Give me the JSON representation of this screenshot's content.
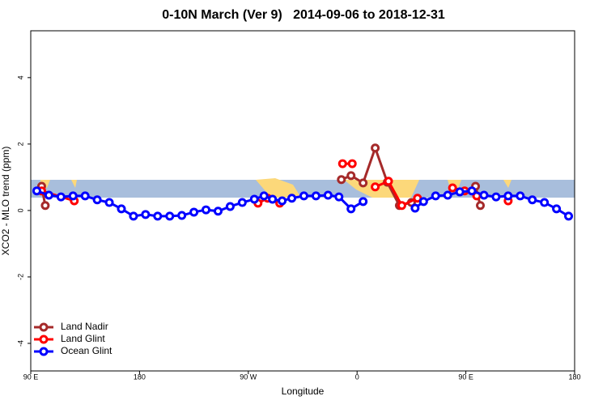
{
  "chart_data": {
    "type": "line",
    "title": "0-10N March (Ver 9)   2014-09-06 to 2018-12-31",
    "xlabel": "Longitude",
    "ylabel": "XCO2 - MLO trend (ppm)",
    "xlim": [
      90,
      540
    ],
    "ylim": [
      -4.83,
      5.41
    ],
    "xticks": [
      {
        "value": 90,
        "label": "90 E"
      },
      180,
      {
        "value": 270,
        "label": "90 W"
      },
      {
        "value": 360,
        "label": "0"
      },
      {
        "value": 450,
        "label": "90 E"
      },
      {
        "value": 540,
        "label": "180"
      }
    ],
    "yticks": [
      -4,
      -2,
      0,
      2,
      4
    ],
    "legend": "bottom-left",
    "series": [
      {
        "name": "Land Nadir",
        "color": "#a52a2a",
        "x": [
          99,
          102,
          null,
          347,
          355,
          365,
          375,
          385,
          395,
          405,
          null,
          458,
          462
        ],
        "values": [
          0.73,
          0.15,
          null,
          0.93,
          1.05,
          0.83,
          1.88,
          0.85,
          0.15,
          0.24,
          null,
          0.73,
          0.15
        ]
      },
      {
        "name": "Land Glint",
        "color": "#ff0000",
        "x": [
          99,
          126,
          null,
          278,
          286,
          296,
          null,
          348,
          356,
          null,
          375,
          386,
          397,
          410,
          null,
          439,
          449,
          459,
          null,
          485
        ],
        "values": [
          0.59,
          0.29,
          null,
          0.22,
          0.37,
          0.22,
          null,
          1.41,
          1.41,
          null,
          0.71,
          0.88,
          0.15,
          0.37,
          null,
          0.68,
          0.59,
          0.44,
          null,
          0.29
        ]
      },
      {
        "name": "Ocean Glint",
        "color": "#0000ff",
        "x": [
          95,
          105,
          115,
          125,
          135,
          145,
          155,
          165,
          175,
          185,
          195,
          205,
          215,
          225,
          235,
          245,
          255,
          265,
          275,
          283,
          290,
          298,
          306,
          316,
          326,
          336,
          345,
          355,
          365,
          null,
          408,
          415,
          425,
          435,
          445,
          455,
          465,
          475,
          485,
          495,
          505,
          515,
          525,
          535
        ],
        "values": [
          0.59,
          0.46,
          0.41,
          0.44,
          0.44,
          0.32,
          0.24,
          0.05,
          -0.17,
          -0.12,
          -0.17,
          -0.17,
          -0.15,
          -0.05,
          0.02,
          -0.02,
          0.12,
          0.24,
          0.34,
          0.44,
          0.34,
          0.29,
          0.37,
          0.44,
          0.44,
          0.46,
          0.41,
          0.05,
          0.27,
          null,
          0.07,
          0.27,
          0.44,
          0.46,
          0.56,
          0.59,
          0.46,
          0.41,
          0.44,
          0.44,
          0.32,
          0.24,
          0.05,
          -0.17
        ]
      }
    ]
  }
}
